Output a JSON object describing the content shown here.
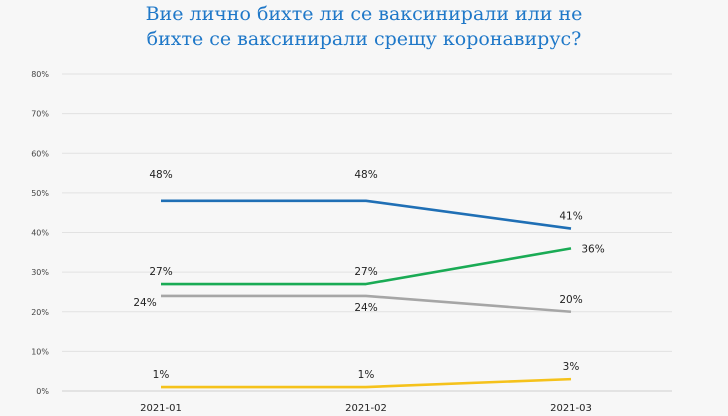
{
  "chart_data": {
    "type": "line",
    "title_lines": [
      "Вие лично бихте ли се ваксинирали или не",
      "бихте се ваксинирали срещу коронавирус?"
    ],
    "categories": [
      "2021-01",
      "2021-02",
      "2021-03"
    ],
    "ylim": [
      0,
      80
    ],
    "yticks": [
      "0%",
      "10%",
      "20%",
      "30%",
      "40%",
      "50%",
      "60%",
      "70%",
      "80%"
    ],
    "grid": true,
    "legend": "none",
    "series": [
      {
        "color": "#1f6fb5",
        "values": [
          48,
          48,
          41
        ],
        "labels": [
          "48%",
          "48%",
          "41%"
        ]
      },
      {
        "color": "#1aab55",
        "values": [
          27,
          27,
          36
        ],
        "labels": [
          "27%",
          "27%",
          "36%"
        ]
      },
      {
        "color": "#a6a6a6",
        "values": [
          24,
          24,
          20
        ],
        "labels": [
          "24%",
          "24%",
          "20%"
        ]
      },
      {
        "color": "#f5c21b",
        "values": [
          1,
          1,
          3
        ],
        "labels": [
          "1%",
          "1%",
          "3%"
        ]
      }
    ]
  }
}
